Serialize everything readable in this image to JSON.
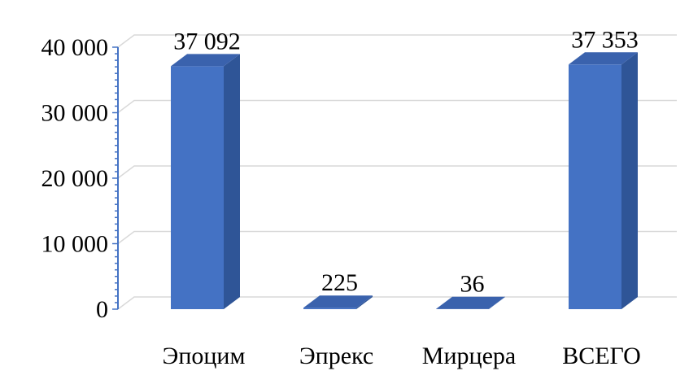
{
  "chart_data": {
    "type": "bar",
    "three_d": true,
    "categories": [
      "Эпоцим",
      "Эпрекс",
      "Мирцера",
      "ВСЕГО"
    ],
    "values": [
      37092,
      225,
      36,
      37353
    ],
    "data_labels": [
      "37 092",
      "225",
      "36",
      "37 353"
    ],
    "y_ticks": [
      0,
      10000,
      20000,
      30000,
      40000
    ],
    "y_tick_labels": [
      "0",
      "10 000",
      "20 000",
      "30 000",
      "40 000"
    ],
    "ylim": [
      0,
      40000
    ],
    "grid": true,
    "legend": "none",
    "colors": {
      "bar_front": "#4472c4",
      "bar_side": "#2f5597",
      "bar_top": "#3a62ad",
      "axis": "#4472c4",
      "grid": "#d9d9d9"
    }
  }
}
